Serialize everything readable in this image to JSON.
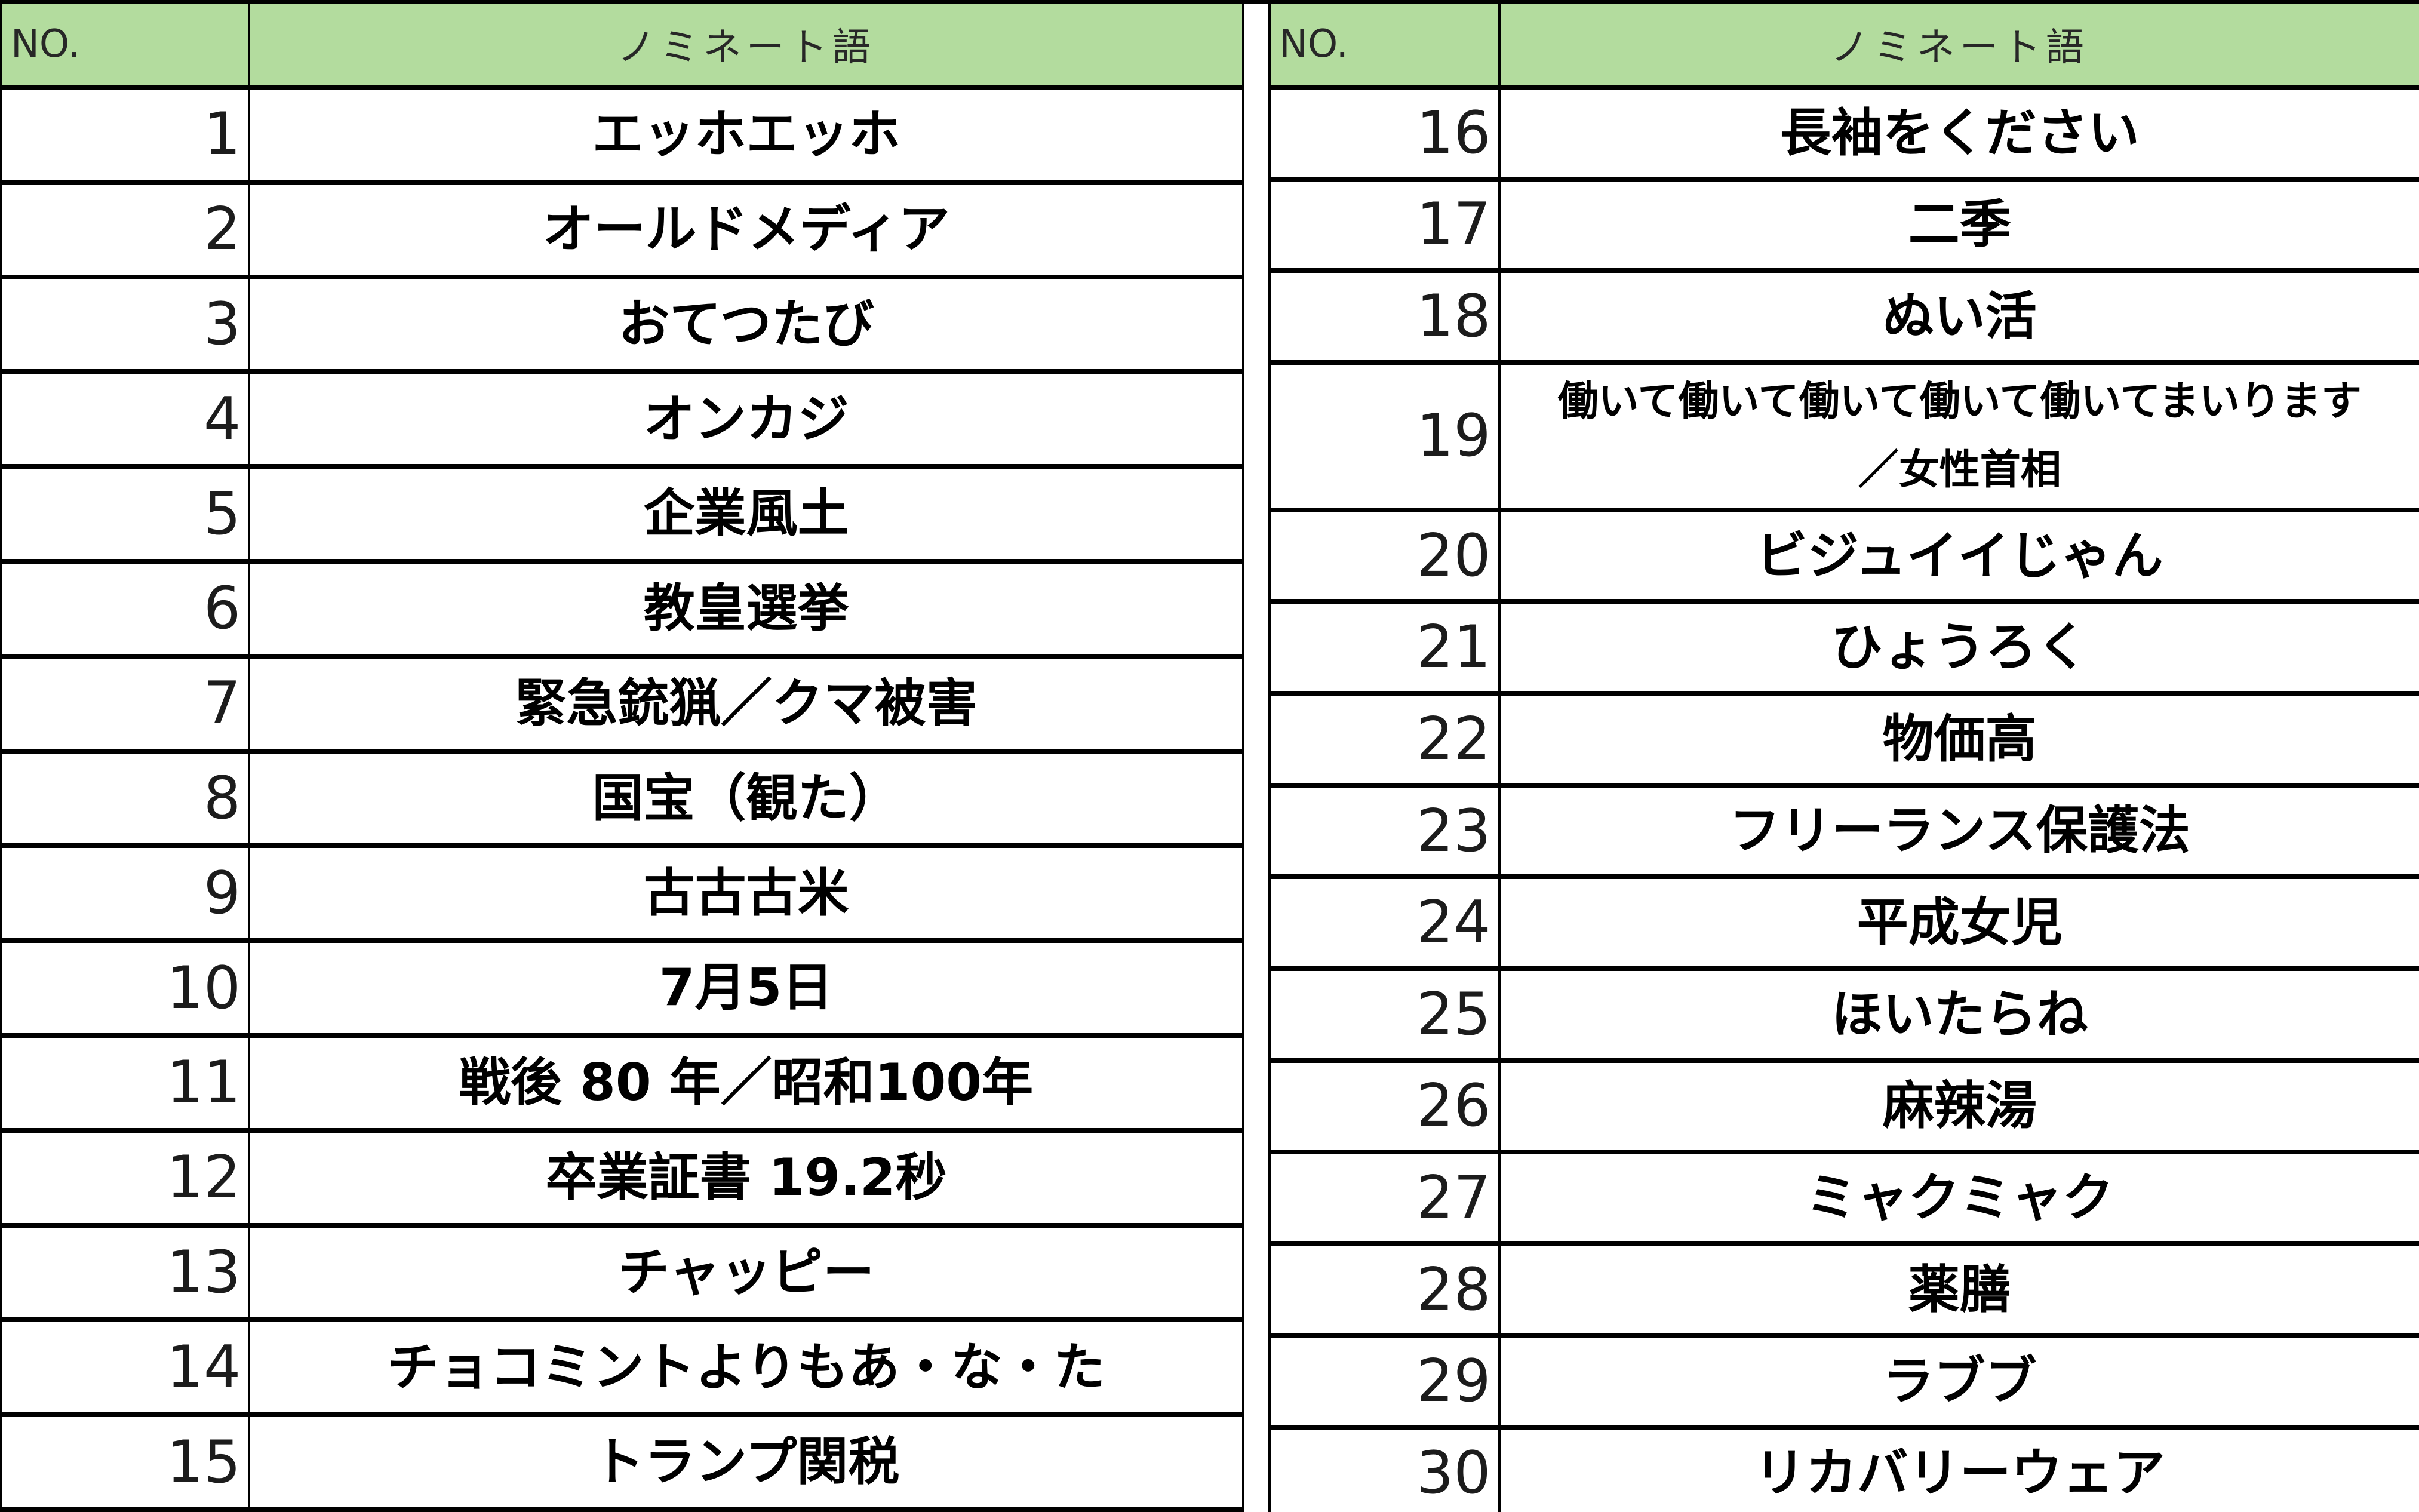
{
  "colors": {
    "header_bg": "#B3DC9E",
    "header_text": "#272727",
    "border": "#000000",
    "number_text": "#1c1c1c",
    "word_text": "#000000"
  },
  "header": {
    "no_label": "NO.",
    "word_label": "ノミネート語"
  },
  "tables": [
    {
      "name": "nominees-1-15",
      "rows": [
        {
          "no": "1",
          "word": "エッホエッホ"
        },
        {
          "no": "2",
          "word": "オールドメディア"
        },
        {
          "no": "3",
          "word": "おてつたび"
        },
        {
          "no": "4",
          "word": "オンカジ"
        },
        {
          "no": "5",
          "word": "企業風土"
        },
        {
          "no": "6",
          "word": "教皇選挙"
        },
        {
          "no": "7",
          "word": "緊急銃猟／クマ被害"
        },
        {
          "no": "8",
          "word": "国宝（観た）"
        },
        {
          "no": "9",
          "word": "古古古米"
        },
        {
          "no": "10",
          "word": "7月5日"
        },
        {
          "no": "11",
          "word": "戦後 80 年／昭和100年"
        },
        {
          "no": "12",
          "word": "卒業証書 19.2秒"
        },
        {
          "no": "13",
          "word": "チャッピー"
        },
        {
          "no": "14",
          "word": "チョコミントよりもあ・な・た"
        },
        {
          "no": "15",
          "word": "トランプ関税"
        }
      ]
    },
    {
      "name": "nominees-16-30",
      "rows": [
        {
          "no": "16",
          "word": "長袖をください"
        },
        {
          "no": "17",
          "word": "二季"
        },
        {
          "no": "18",
          "word": "ぬい活"
        },
        {
          "no": "19",
          "word": "働いて働いて働いて働いて働いてまいります\n／女性首相",
          "multiline": true
        },
        {
          "no": "20",
          "word": "ビジュイイじゃん"
        },
        {
          "no": "21",
          "word": "ひょうろく"
        },
        {
          "no": "22",
          "word": "物価高"
        },
        {
          "no": "23",
          "word": "フリーランス保護法"
        },
        {
          "no": "24",
          "word": "平成女児"
        },
        {
          "no": "25",
          "word": "ほいたらね"
        },
        {
          "no": "26",
          "word": "麻辣湯"
        },
        {
          "no": "27",
          "word": "ミャクミャク"
        },
        {
          "no": "28",
          "word": "薬膳"
        },
        {
          "no": "29",
          "word": "ラブブ"
        },
        {
          "no": "30",
          "word": "リカバリーウェア"
        }
      ]
    }
  ]
}
